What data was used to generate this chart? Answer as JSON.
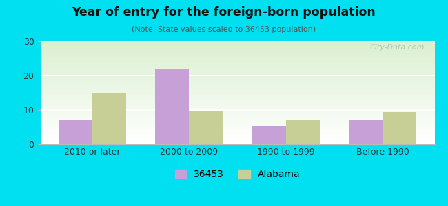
{
  "title": "Year of entry for the foreign-born population",
  "subtitle": "(Note: State values scaled to 36453 population)",
  "categories": [
    "2010 or later",
    "2000 to 2009",
    "1990 to 1999",
    "Before 1990"
  ],
  "values_36453": [
    7,
    22,
    5.5,
    7
  ],
  "values_alabama": [
    15,
    9.7,
    7,
    9.5
  ],
  "bar_color_36453": "#c8a0d8",
  "bar_color_alabama": "#c8cf96",
  "background_outer": "#00e0f0",
  "ylim": [
    0,
    30
  ],
  "yticks": [
    0,
    10,
    20,
    30
  ],
  "bar_width": 0.35,
  "legend_label_1": "36453",
  "legend_label_2": "Alabama",
  "watermark": "City-Data.com"
}
